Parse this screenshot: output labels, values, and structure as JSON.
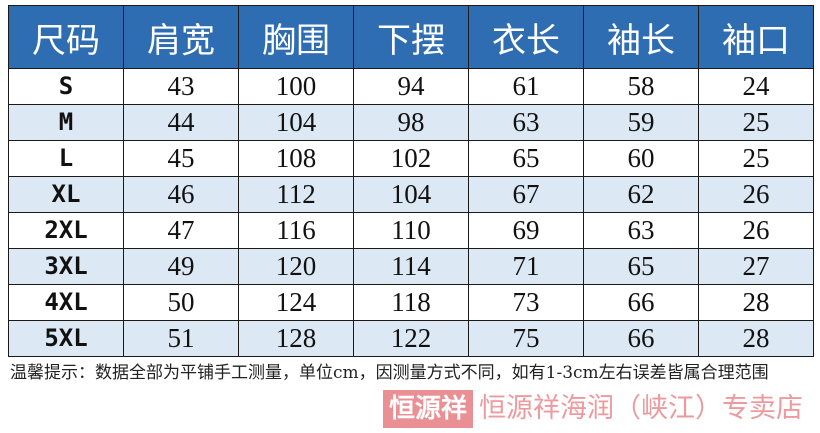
{
  "table": {
    "headers": [
      "尺码",
      "肩宽",
      "胸围",
      "下摆",
      "衣长",
      "袖长",
      "袖口"
    ],
    "rows": [
      [
        "S",
        "43",
        "100",
        "94",
        "61",
        "58",
        "24"
      ],
      [
        "M",
        "44",
        "104",
        "98",
        "63",
        "59",
        "25"
      ],
      [
        "L",
        "45",
        "108",
        "102",
        "65",
        "60",
        "25"
      ],
      [
        "XL",
        "46",
        "112",
        "104",
        "67",
        "62",
        "26"
      ],
      [
        "2XL",
        "47",
        "116",
        "110",
        "69",
        "63",
        "26"
      ],
      [
        "3XL",
        "49",
        "120",
        "114",
        "71",
        "65",
        "27"
      ],
      [
        "4XL",
        "50",
        "124",
        "118",
        "73",
        "66",
        "28"
      ],
      [
        "5XL",
        "51",
        "128",
        "122",
        "75",
        "66",
        "28"
      ]
    ]
  },
  "note": "温馨提示：数据全部为平铺手工测量，单位cm，因测量方式不同，如有1-3cm左右误差皆属合理范围",
  "watermark": {
    "logo": "恒源祥",
    "text": "恒源祥海润（峡江）专卖店"
  },
  "colors": {
    "header_bg": "#2f6db3",
    "alt_row": "#dde8f5"
  }
}
